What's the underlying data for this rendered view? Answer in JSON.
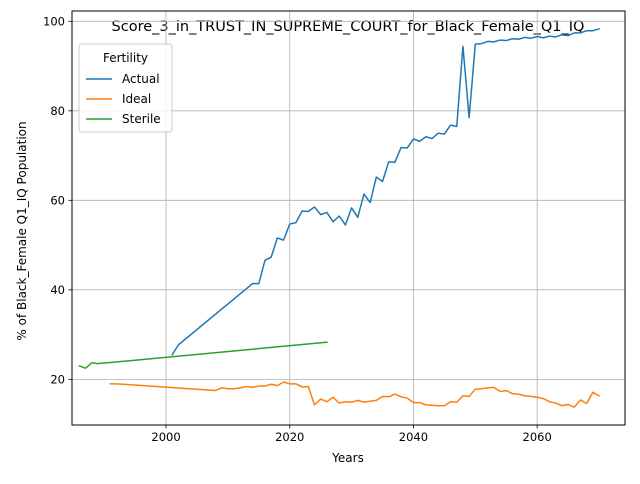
{
  "chart_data": {
    "type": "line",
    "title": "Score_3_in_TRUST_IN_SUPREME_COURT_for_Black_Female_Q1_IQ",
    "xlabel": "Years",
    "ylabel": "% of Black_Female Q1_IQ Population",
    "xlim": [
      1984.8,
      2074.2
    ],
    "ylim": [
      9.8,
      102.3
    ],
    "xticks": [
      2000,
      2020,
      2040,
      2060
    ],
    "yticks": [
      20,
      40,
      60,
      80,
      100
    ],
    "grid": true,
    "legend": {
      "title": "Fertility",
      "placement": "upper left"
    },
    "series": [
      {
        "name": "Actual",
        "color": "#1f77b4",
        "points": [
          [
            2001,
            25.5
          ],
          [
            2002,
            27.7
          ],
          [
            2014,
            41.4
          ],
          [
            2015,
            41.4
          ],
          [
            2016,
            46.6
          ],
          [
            2017,
            47.3
          ],
          [
            2018,
            51.6
          ],
          [
            2019,
            51.1
          ],
          [
            2020,
            54.7
          ],
          [
            2021,
            55.0
          ],
          [
            2022,
            57.6
          ],
          [
            2023,
            57.5
          ],
          [
            2024,
            58.5
          ],
          [
            2025,
            56.8
          ],
          [
            2026,
            57.3
          ],
          [
            2027,
            55.2
          ],
          [
            2028,
            56.5
          ],
          [
            2029,
            54.5
          ],
          [
            2030,
            58.3
          ],
          [
            2031,
            56.2
          ],
          [
            2032,
            61.4
          ],
          [
            2033,
            59.5
          ],
          [
            2034,
            65.2
          ],
          [
            2035,
            64.2
          ],
          [
            2036,
            68.6
          ],
          [
            2037,
            68.5
          ],
          [
            2038,
            71.8
          ],
          [
            2039,
            71.7
          ],
          [
            2040,
            73.7
          ],
          [
            2041,
            73.2
          ],
          [
            2042,
            74.2
          ],
          [
            2043,
            73.8
          ],
          [
            2044,
            75.0
          ],
          [
            2045,
            74.8
          ],
          [
            2046,
            76.8
          ],
          [
            2047,
            76.5
          ],
          [
            2048,
            94.4
          ],
          [
            2049,
            78.5
          ],
          [
            2050,
            94.9
          ],
          [
            2051,
            95.0
          ],
          [
            2052,
            95.5
          ],
          [
            2053,
            95.4
          ],
          [
            2054,
            95.8
          ],
          [
            2055,
            95.7
          ],
          [
            2056,
            96.1
          ],
          [
            2057,
            96.0
          ],
          [
            2058,
            96.4
          ],
          [
            2059,
            96.2
          ],
          [
            2060,
            96.6
          ],
          [
            2061,
            96.3
          ],
          [
            2062,
            96.7
          ],
          [
            2063,
            96.5
          ],
          [
            2064,
            97.0
          ],
          [
            2065,
            96.8
          ],
          [
            2066,
            97.4
          ],
          [
            2067,
            97.4
          ],
          [
            2068,
            97.9
          ],
          [
            2069,
            97.9
          ],
          [
            2070,
            98.3
          ]
        ]
      },
      {
        "name": "Ideal",
        "color": "#ff7f0e",
        "points": [
          [
            1991,
            19.0
          ],
          [
            1992,
            19.0
          ],
          [
            2007,
            17.6
          ],
          [
            2008,
            17.5
          ],
          [
            2009,
            18.1
          ],
          [
            2010,
            17.9
          ],
          [
            2011,
            17.9
          ],
          [
            2012,
            18.1
          ],
          [
            2013,
            18.4
          ],
          [
            2014,
            18.2
          ],
          [
            2015,
            18.5
          ],
          [
            2016,
            18.5
          ],
          [
            2017,
            18.9
          ],
          [
            2018,
            18.6
          ],
          [
            2019,
            19.4
          ],
          [
            2020,
            19.0
          ],
          [
            2021,
            19.0
          ],
          [
            2022,
            18.3
          ],
          [
            2023,
            18.4
          ],
          [
            2024,
            14.3
          ],
          [
            2025,
            15.6
          ],
          [
            2026,
            15.0
          ],
          [
            2027,
            16.0
          ],
          [
            2028,
            14.7
          ],
          [
            2029,
            15.0
          ],
          [
            2030,
            14.9
          ],
          [
            2031,
            15.3
          ],
          [
            2032,
            14.9
          ],
          [
            2033,
            15.1
          ],
          [
            2034,
            15.3
          ],
          [
            2035,
            16.2
          ],
          [
            2036,
            16.1
          ],
          [
            2037,
            16.7
          ],
          [
            2038,
            16.1
          ],
          [
            2039,
            15.8
          ],
          [
            2040,
            14.8
          ],
          [
            2041,
            14.8
          ],
          [
            2042,
            14.3
          ],
          [
            2043,
            14.2
          ],
          [
            2044,
            14.1
          ],
          [
            2045,
            14.1
          ],
          [
            2046,
            15.0
          ],
          [
            2047,
            14.9
          ],
          [
            2048,
            16.3
          ],
          [
            2049,
            16.2
          ],
          [
            2050,
            17.8
          ],
          [
            2051,
            17.9
          ],
          [
            2052,
            18.1
          ],
          [
            2053,
            18.2
          ],
          [
            2054,
            17.3
          ],
          [
            2055,
            17.5
          ],
          [
            2056,
            16.8
          ],
          [
            2057,
            16.7
          ],
          [
            2058,
            16.3
          ],
          [
            2059,
            16.2
          ],
          [
            2060,
            16.0
          ],
          [
            2061,
            15.7
          ],
          [
            2062,
            15.0
          ],
          [
            2063,
            14.7
          ],
          [
            2064,
            14.1
          ],
          [
            2065,
            14.4
          ],
          [
            2066,
            13.8
          ],
          [
            2067,
            15.4
          ],
          [
            2068,
            14.6
          ],
          [
            2069,
            17.1
          ],
          [
            2070,
            16.3
          ]
        ]
      },
      {
        "name": "Sterile",
        "color": "#2ca02c",
        "points": [
          [
            1986,
            23.0
          ],
          [
            1987,
            22.5
          ],
          [
            1988,
            23.7
          ],
          [
            1989,
            23.5
          ],
          [
            2026,
            28.3
          ]
        ]
      }
    ]
  }
}
